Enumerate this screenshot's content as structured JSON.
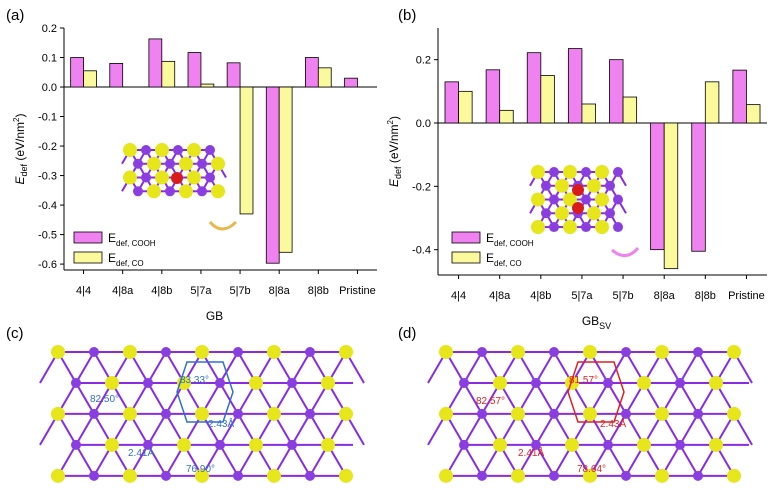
{
  "colors": {
    "cooh": "#f081f0",
    "co": "#fafa9c",
    "bond": "#8a2be2",
    "atom_s": "#e6e61a",
    "atom_mo": "#8a3ee0",
    "annotation_blue": "#2f6fce",
    "annotation_red": "#e02020"
  },
  "panels": {
    "a": {
      "label": "(a)"
    },
    "b": {
      "label": "(b)"
    },
    "c": {
      "label": "(c)",
      "annotations": [
        "83.33°",
        "82.50°",
        "2.43Å",
        "2.41Å",
        "76.90°"
      ]
    },
    "d": {
      "label": "(d)",
      "annotations": [
        "81.57°",
        "82.57°",
        "2.43Å",
        "2.41Å",
        "78.64°"
      ]
    }
  },
  "chart_data": [
    {
      "type": "bar",
      "panel": "(a)",
      "categories": [
        "4|4",
        "4|8a",
        "4|8b",
        "5|7a",
        "5|7b",
        "8|8a",
        "8|8b",
        "Pristine"
      ],
      "xlabel": "GB",
      "xlabel_sub": "",
      "ylabel": "E",
      "ylabel_sub": "def",
      "ylabel_unit": " (eV/nm",
      "ylabel_sup": "2",
      "ylabel_close": ")",
      "ylim": [
        -0.62,
        0.2
      ],
      "yticks": [
        -0.6,
        -0.5,
        -0.4,
        -0.3,
        -0.2,
        -0.1,
        0.0,
        0.1,
        0.2
      ],
      "ytick_labels": [
        "-0.6",
        "-0.5",
        "-0.4",
        "-0.3",
        "-0.2",
        "-0.1",
        "0.0",
        "0.1",
        "0.2"
      ],
      "series": [
        {
          "name": "E",
          "name_sub": "def, COOH",
          "values": [
            0.1,
            0.08,
            0.163,
            0.117,
            0.082,
            -0.597,
            0.1,
            0.03
          ]
        },
        {
          "name": "E",
          "name_sub": "def, CO",
          "values": [
            0.055,
            null,
            0.087,
            0.01,
            -0.43,
            -0.56,
            0.065,
            null
          ]
        }
      ],
      "legend_position": "bottom-left"
    },
    {
      "type": "bar",
      "panel": "(b)",
      "categories": [
        "4|4",
        "4|8a",
        "4|8b",
        "5|7a",
        "5|7b",
        "8|8a",
        "8|8b",
        "Pristine"
      ],
      "xlabel": "GB",
      "xlabel_sub": "SV",
      "ylabel": "E",
      "ylabel_sub": "def",
      "ylabel_unit": " (eV/nm",
      "ylabel_sup": "2",
      "ylabel_close": ")",
      "ylim": [
        -0.48,
        0.3
      ],
      "yticks": [
        -0.4,
        -0.2,
        0.0,
        0.2
      ],
      "ytick_labels": [
        "-0.4",
        "-0.2",
        "0.0",
        "0.2"
      ],
      "series": [
        {
          "name": "E",
          "name_sub": "def, COOH",
          "values": [
            0.13,
            0.168,
            0.222,
            0.235,
            0.2,
            -0.4,
            -0.405,
            0.167
          ]
        },
        {
          "name": "E",
          "name_sub": "def, CO",
          "values": [
            0.1,
            0.04,
            0.15,
            0.06,
            0.082,
            -0.46,
            0.13,
            0.058
          ]
        }
      ],
      "legend_position": "bottom-left"
    }
  ]
}
